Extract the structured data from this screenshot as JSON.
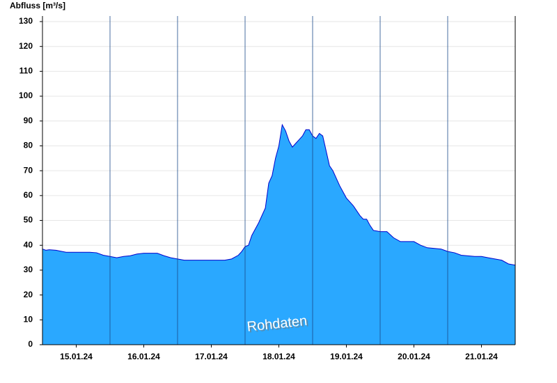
{
  "chart_data": {
    "type": "area",
    "y_label": "Abfluss [m³/s]",
    "annotation": "Rohdaten",
    "color": "#2aa8ff",
    "line_color": "#0000cc",
    "grid": true,
    "xlim": [
      0,
      7
    ],
    "xticks": [
      {
        "value": 0.5,
        "label": "15.01.24"
      },
      {
        "value": 1.5,
        "label": "16.01.24"
      },
      {
        "value": 2.5,
        "label": "17.01.24"
      },
      {
        "value": 3.5,
        "label": "18.01.24"
      },
      {
        "value": 4.5,
        "label": "19.01.24"
      },
      {
        "value": 5.5,
        "label": "20.01.24"
      },
      {
        "value": 6.5,
        "label": "21.01.24"
      }
    ],
    "xgrid": [
      1,
      2,
      3,
      4,
      5,
      6
    ],
    "ylim": [
      0,
      130
    ],
    "yticks": [
      0,
      10,
      20,
      30,
      40,
      50,
      60,
      70,
      80,
      90,
      100,
      110,
      120,
      130
    ],
    "x": [
      0,
      0.05,
      0.1,
      0.2,
      0.35,
      0.5,
      0.7,
      0.8,
      0.9,
      1.0,
      1.1,
      1.2,
      1.3,
      1.4,
      1.5,
      1.7,
      1.8,
      1.9,
      2.0,
      2.1,
      2.3,
      2.5,
      2.7,
      2.8,
      2.9,
      2.95,
      3.0,
      3.05,
      3.1,
      3.2,
      3.3,
      3.35,
      3.4,
      3.45,
      3.5,
      3.55,
      3.6,
      3.65,
      3.7,
      3.75,
      3.8,
      3.85,
      3.9,
      3.95,
      4.0,
      4.05,
      4.1,
      4.15,
      4.2,
      4.25,
      4.3,
      4.4,
      4.5,
      4.6,
      4.7,
      4.75,
      4.8,
      4.85,
      4.9,
      5.0,
      5.1,
      5.2,
      5.3,
      5.5,
      5.6,
      5.7,
      5.9,
      6.0,
      6.1,
      6.2,
      6.4,
      6.5,
      6.6,
      6.7,
      6.8,
      6.9,
      7.0
    ],
    "values": [
      38.5,
      38,
      38.2,
      38,
      37.2,
      37.2,
      37.2,
      37,
      36,
      35.5,
      35,
      35.5,
      35.8,
      36.5,
      36.8,
      36.8,
      35.8,
      35,
      34.5,
      34,
      34,
      34,
      34,
      34.5,
      36,
      37.5,
      39.5,
      40,
      44,
      49,
      55,
      65,
      68,
      75,
      80,
      88.5,
      86,
      82,
      79.5,
      81,
      82.5,
      84,
      86.5,
      86.5,
      84,
      83,
      85,
      84,
      78,
      72,
      70,
      64,
      59,
      56,
      52,
      50.5,
      50.5,
      48,
      46,
      45.5,
      45.5,
      43,
      41.5,
      41.5,
      40,
      39,
      38.5,
      37.5,
      37,
      36,
      35.5,
      35.5,
      35,
      34.5,
      34,
      32.5,
      32
    ]
  }
}
